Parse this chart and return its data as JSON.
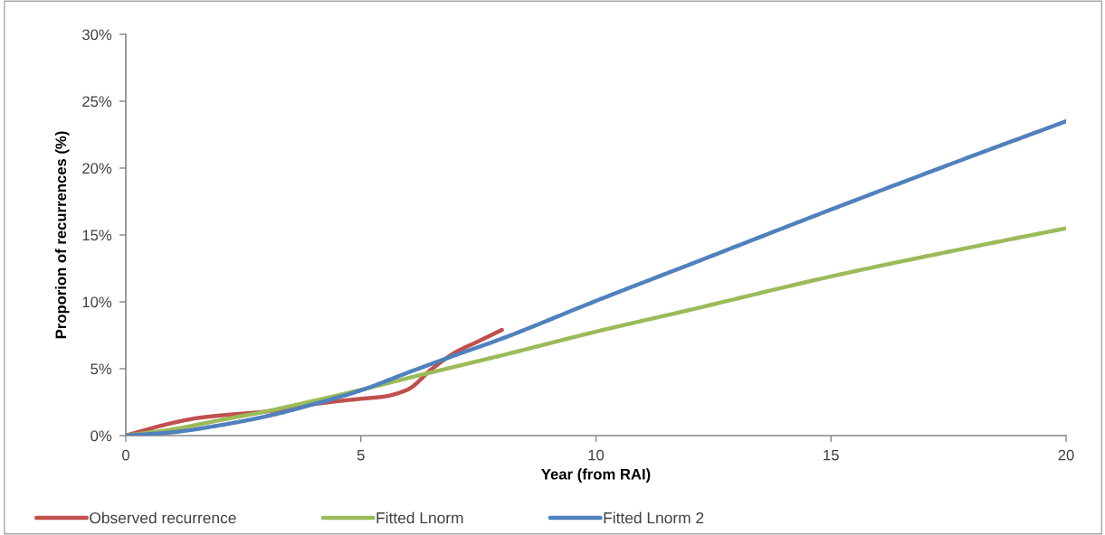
{
  "chart_data": {
    "type": "line",
    "xlabel": "Year (from RAI)",
    "ylabel": "Proporion of recurrences (%)",
    "xlim": [
      0,
      20
    ],
    "xticks": [
      0,
      5,
      10,
      15,
      20
    ],
    "ylim": [
      0,
      30
    ],
    "yticks": [
      {
        "value": 0,
        "label": "0%"
      },
      {
        "value": 5,
        "label": "5%"
      },
      {
        "value": 10,
        "label": "10%"
      },
      {
        "value": 15,
        "label": "15%"
      },
      {
        "value": 20,
        "label": "20%"
      },
      {
        "value": 25,
        "label": "25%"
      },
      {
        "value": 30,
        "label": "30%"
      }
    ],
    "grid": false,
    "legend": "bottom",
    "series": [
      {
        "name": "Observed recurrence",
        "color": "#c0504d",
        "x": [
          0,
          0.5,
          1,
          1.5,
          2,
          2.5,
          3,
          3.5,
          4,
          4.5,
          5,
          5.5,
          6,
          6.5,
          7,
          7.5,
          8
        ],
        "values": [
          0,
          0.5,
          0.95,
          1.3,
          1.5,
          1.65,
          1.8,
          2.05,
          2.35,
          2.57,
          2.75,
          2.92,
          3.45,
          4.95,
          6.2,
          7.05,
          7.9
        ]
      },
      {
        "name": "Fitted Lnorm",
        "color": "#9bbb59",
        "x": [
          0,
          1,
          2,
          3,
          4,
          5,
          6,
          7,
          8,
          10,
          12,
          15,
          18,
          20
        ],
        "values": [
          0,
          0.47,
          1.15,
          1.82,
          2.6,
          3.42,
          4.3,
          5.15,
          6.0,
          7.77,
          9.4,
          11.9,
          14.1,
          15.5
        ]
      },
      {
        "name": "Fitted Lnorm 2",
        "color": "#4f81bd",
        "x": [
          0,
          1,
          2,
          3,
          4,
          5,
          6,
          7,
          8,
          10,
          12,
          15,
          18,
          20
        ],
        "values": [
          0,
          0.25,
          0.77,
          1.45,
          2.35,
          3.38,
          4.71,
          6.0,
          7.25,
          10.07,
          12.8,
          16.9,
          20.9,
          23.5
        ]
      }
    ]
  }
}
